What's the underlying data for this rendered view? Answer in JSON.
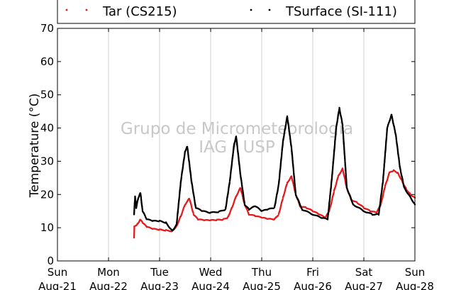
{
  "chart_data": {
    "type": "scatter",
    "ylabel": "Temperature (°C)",
    "ylim": [
      0,
      70
    ],
    "yticks": [
      0,
      10,
      20,
      30,
      40,
      50,
      60,
      70
    ],
    "xlim": [
      "2016-08-21T00:00",
      "2016-08-28T00:00"
    ],
    "xticks": [
      {
        "day": "Sun",
        "date": "Aug-21"
      },
      {
        "day": "Mon",
        "date": "Aug-22"
      },
      {
        "day": "Tue",
        "date": "Aug-23"
      },
      {
        "day": "Wed",
        "date": "Aug-24"
      },
      {
        "day": "Thu",
        "date": "Aug-25"
      },
      {
        "day": "Fri",
        "date": "Aug-26"
      },
      {
        "day": "Sat",
        "date": "Aug-27"
      },
      {
        "day": "Sun",
        "date": "Aug-28"
      }
    ],
    "grid": {
      "vertical": true,
      "horizontal": false
    },
    "legend_position": "top",
    "watermark": [
      "Grupo de Micrometeorologia",
      "IAG / USP"
    ],
    "series": [
      {
        "name": "Tar (CS215)",
        "color": "#e41a1c",
        "points": [
          [
            "2016-08-22T12:00",
            7
          ],
          [
            "2016-08-22T12:10",
            10.5
          ],
          [
            "2016-08-22T13:00",
            10.8
          ],
          [
            "2016-08-22T14:00",
            11.5
          ],
          [
            "2016-08-22T15:00",
            12.5
          ],
          [
            "2016-08-22T16:00",
            11.5
          ],
          [
            "2016-08-22T18:00",
            10.2
          ],
          [
            "2016-08-22T21:00",
            9.6
          ],
          [
            "2016-08-23T00:00",
            9.4
          ],
          [
            "2016-08-23T03:00",
            9.2
          ],
          [
            "2016-08-23T06:00",
            9.0
          ],
          [
            "2016-08-23T08:00",
            10.5
          ],
          [
            "2016-08-23T10:00",
            13.5
          ],
          [
            "2016-08-23T12:00",
            17
          ],
          [
            "2016-08-23T14:00",
            18.8
          ],
          [
            "2016-08-23T16:00",
            14
          ],
          [
            "2016-08-23T18:00",
            12.5
          ],
          [
            "2016-08-23T21:00",
            12.2
          ],
          [
            "2016-08-24T00:00",
            12.2
          ],
          [
            "2016-08-24T03:00",
            12.3
          ],
          [
            "2016-08-24T06:00",
            12.5
          ],
          [
            "2016-08-24T08:00",
            13
          ],
          [
            "2016-08-24T10:00",
            16
          ],
          [
            "2016-08-24T12:00",
            19.5
          ],
          [
            "2016-08-24T14:00",
            22
          ],
          [
            "2016-08-24T16:00",
            17
          ],
          [
            "2016-08-24T18:00",
            14
          ],
          [
            "2016-08-24T21:00",
            13.5
          ],
          [
            "2016-08-25T00:00",
            13
          ],
          [
            "2016-08-25T03:00",
            12.6
          ],
          [
            "2016-08-25T06:00",
            12.5
          ],
          [
            "2016-08-25T08:00",
            14
          ],
          [
            "2016-08-25T10:00",
            19
          ],
          [
            "2016-08-25T12:00",
            23.5
          ],
          [
            "2016-08-25T14:00",
            25.5
          ],
          [
            "2016-08-25T16:00",
            20
          ],
          [
            "2016-08-25T18:00",
            16.5
          ],
          [
            "2016-08-25T21:00",
            16
          ],
          [
            "2016-08-26T00:00",
            15
          ],
          [
            "2016-08-26T03:00",
            14
          ],
          [
            "2016-08-26T06:00",
            13
          ],
          [
            "2016-08-26T08:00",
            15.5
          ],
          [
            "2016-08-26T10:00",
            21
          ],
          [
            "2016-08-26T12:00",
            25.5
          ],
          [
            "2016-08-26T14:00",
            27.8
          ],
          [
            "2016-08-26T16:00",
            22
          ],
          [
            "2016-08-26T18:00",
            18.5
          ],
          [
            "2016-08-26T21:00",
            17.5
          ],
          [
            "2016-08-27T00:00",
            16
          ],
          [
            "2016-08-27T03:00",
            15
          ],
          [
            "2016-08-27T06:00",
            14.5
          ],
          [
            "2016-08-27T08:00",
            17
          ],
          [
            "2016-08-27T10:00",
            22.5
          ],
          [
            "2016-08-27T12:00",
            26.5
          ],
          [
            "2016-08-27T14:00",
            27.2
          ],
          [
            "2016-08-27T16:00",
            26.5
          ],
          [
            "2016-08-27T18:00",
            24
          ],
          [
            "2016-08-27T20:00",
            21.5
          ],
          [
            "2016-08-27T22:00",
            20
          ],
          [
            "2016-08-28T00:00",
            19
          ]
        ]
      },
      {
        "name": "TSurface (SI-111)",
        "color": "#000000",
        "points": [
          [
            "2016-08-22T12:00",
            14
          ],
          [
            "2016-08-22T12:30",
            19.5
          ],
          [
            "2016-08-22T13:00",
            16
          ],
          [
            "2016-08-22T14:00",
            19
          ],
          [
            "2016-08-22T15:00",
            20.5
          ],
          [
            "2016-08-22T16:00",
            15
          ],
          [
            "2016-08-22T18:00",
            12.5
          ],
          [
            "2016-08-22T21:00",
            12
          ],
          [
            "2016-08-23T00:00",
            12
          ],
          [
            "2016-08-23T03:00",
            11.5
          ],
          [
            "2016-08-23T06:00",
            9
          ],
          [
            "2016-08-23T08:00",
            11
          ],
          [
            "2016-08-23T10:00",
            24
          ],
          [
            "2016-08-23T12:00",
            33
          ],
          [
            "2016-08-23T13:00",
            34.5
          ],
          [
            "2016-08-23T15:00",
            24
          ],
          [
            "2016-08-23T17:00",
            16
          ],
          [
            "2016-08-23T20:00",
            15
          ],
          [
            "2016-08-24T00:00",
            14.5
          ],
          [
            "2016-08-24T04:00",
            14.8
          ],
          [
            "2016-08-24T07:00",
            15.5
          ],
          [
            "2016-08-24T09:00",
            24
          ],
          [
            "2016-08-24T11:00",
            35
          ],
          [
            "2016-08-24T12:00",
            37.5
          ],
          [
            "2016-08-24T14:00",
            26
          ],
          [
            "2016-08-24T16:00",
            17
          ],
          [
            "2016-08-24T18:00",
            15.5
          ],
          [
            "2016-08-24T21:00",
            16.5
          ],
          [
            "2016-08-25T00:00",
            15
          ],
          [
            "2016-08-25T03:00",
            15.5
          ],
          [
            "2016-08-25T06:00",
            16
          ],
          [
            "2016-08-25T08:00",
            23
          ],
          [
            "2016-08-25T10:00",
            36
          ],
          [
            "2016-08-25T12:00",
            43.5
          ],
          [
            "2016-08-25T14:00",
            34
          ],
          [
            "2016-08-25T16:00",
            20
          ],
          [
            "2016-08-25T19:00",
            15.5
          ],
          [
            "2016-08-26T00:00",
            14
          ],
          [
            "2016-08-26T04:00",
            13
          ],
          [
            "2016-08-26T07:00",
            12.5
          ],
          [
            "2016-08-26T09:00",
            25
          ],
          [
            "2016-08-26T11:00",
            40
          ],
          [
            "2016-08-26T12:30",
            46
          ],
          [
            "2016-08-26T14:00",
            41
          ],
          [
            "2016-08-26T16:00",
            22
          ],
          [
            "2016-08-26T19:00",
            17
          ],
          [
            "2016-08-27T00:00",
            15
          ],
          [
            "2016-08-27T04:00",
            14
          ],
          [
            "2016-08-27T07:00",
            14
          ],
          [
            "2016-08-27T09:00",
            24
          ],
          [
            "2016-08-27T11:00",
            40
          ],
          [
            "2016-08-27T13:00",
            44
          ],
          [
            "2016-08-27T15:00",
            38
          ],
          [
            "2016-08-27T17:00",
            28
          ],
          [
            "2016-08-27T19:00",
            22
          ],
          [
            "2016-08-27T22:00",
            19
          ],
          [
            "2016-08-28T00:00",
            17
          ]
        ]
      }
    ]
  }
}
